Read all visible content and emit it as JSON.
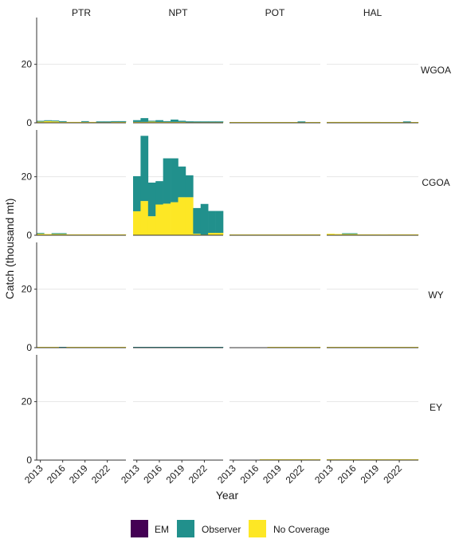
{
  "chart_data": {
    "type": "bar",
    "stacked": true,
    "faceted": true,
    "xlabel": "Year",
    "ylabel": "Catch (thousand mt)",
    "ylim": [
      0,
      36
    ],
    "yticks": [
      0,
      20
    ],
    "xticks": [
      2013,
      2016,
      2019,
      2022
    ],
    "x_range": [
      2012.5,
      2024.5
    ],
    "grid": true,
    "legend_position": "bottom",
    "columns": [
      "PTR",
      "NPT",
      "POT",
      "HAL"
    ],
    "rows": [
      "WGOA",
      "CGOA",
      "WY",
      "EY"
    ],
    "years": [
      2013,
      2014,
      2015,
      2016,
      2017,
      2018,
      2019,
      2020,
      2021,
      2022,
      2023,
      2024
    ],
    "series": [
      {
        "name": "EM",
        "color": "#440154"
      },
      {
        "name": "Observer",
        "color": "#21908C"
      },
      {
        "name": "No Coverage",
        "color": "#FDE725"
      }
    ],
    "panels": [
      {
        "row": "WGOA",
        "col": "PTR",
        "EM": [
          0,
          0,
          0,
          0,
          0,
          0,
          0,
          0,
          0,
          0,
          0,
          0
        ],
        "Observer": [
          0.1,
          0.1,
          0.1,
          0.1,
          0,
          0,
          0.1,
          0,
          0.2,
          0.1,
          0.1,
          0.1
        ],
        "No Coverage": [
          0.4,
          0.6,
          0.5,
          0.3,
          0.3,
          0.3,
          0.3,
          0.3,
          0.2,
          0.2,
          0.3,
          0.3
        ]
      },
      {
        "row": "WGOA",
        "col": "NPT",
        "EM": [
          0,
          0,
          0,
          0,
          0,
          0,
          0,
          0,
          0,
          0,
          0,
          0
        ],
        "Observer": [
          0.6,
          1.3,
          0.3,
          0.6,
          0.2,
          0.8,
          0.4,
          0.3,
          0.1,
          0.1,
          0.1,
          0.1
        ],
        "No Coverage": [
          0.3,
          0.3,
          0.4,
          0.3,
          0.3,
          0.3,
          0.3,
          0.2,
          0.2,
          0.2,
          0.2,
          0.2
        ]
      },
      {
        "row": "WGOA",
        "col": "POT",
        "EM": [
          0,
          0,
          0,
          0,
          0,
          0,
          0,
          0,
          0,
          0,
          0,
          0
        ],
        "Observer": [
          0,
          0,
          0,
          0,
          0,
          0,
          0,
          0,
          0,
          0.1,
          0,
          0
        ],
        "No Coverage": [
          0.1,
          0.1,
          0.1,
          0.1,
          0.1,
          0.1,
          0.1,
          0.2,
          0.2,
          0.2,
          0.2,
          0.2
        ]
      },
      {
        "row": "WGOA",
        "col": "HAL",
        "EM": [
          0,
          0,
          0,
          0,
          0,
          0,
          0,
          0,
          0,
          0,
          0,
          0
        ],
        "Observer": [
          0,
          0,
          0,
          0,
          0,
          0,
          0,
          0,
          0,
          0,
          0.2,
          0
        ],
        "No Coverage": [
          0.3,
          0.3,
          0.3,
          0.3,
          0.3,
          0.3,
          0.3,
          0.2,
          0.2,
          0.2,
          0.2,
          0.2
        ]
      },
      {
        "row": "CGOA",
        "col": "PTR",
        "EM": [
          0,
          0,
          0,
          0,
          0,
          0,
          0,
          0,
          0,
          0,
          0,
          0
        ],
        "Observer": [
          0.2,
          0,
          0.3,
          0.3,
          0,
          0,
          0,
          0,
          0,
          0,
          0,
          0
        ],
        "No Coverage": [
          0.5,
          0.4,
          0.4,
          0.4,
          0.3,
          0.3,
          0.3,
          0.3,
          0.3,
          0.3,
          0.3,
          0.3
        ]
      },
      {
        "row": "CGOA",
        "col": "NPT",
        "EM": [
          0,
          0,
          0,
          0,
          0,
          0,
          0,
          0,
          0,
          0,
          0,
          0
        ],
        "Observer": [
          12.0,
          22.3,
          11.5,
          8.0,
          15.5,
          15.0,
          10.5,
          7.5,
          8.8,
          10.5,
          7.5,
          7.5
        ],
        "No Coverage": [
          8.2,
          11.7,
          6.5,
          10.5,
          10.8,
          11.3,
          13.0,
          13.0,
          0.5,
          0.2,
          0.8,
          0.8
        ]
      },
      {
        "row": "CGOA",
        "col": "POT",
        "EM": [
          0,
          0,
          0,
          0,
          0,
          0,
          0,
          0,
          0,
          0,
          0,
          0
        ],
        "Observer": [
          0,
          0,
          0,
          0,
          0,
          0,
          0,
          0,
          0,
          0,
          0,
          0
        ],
        "No Coverage": [
          0.2,
          0.1,
          0.1,
          0.1,
          0.1,
          0.1,
          0.1,
          0.2,
          0.3,
          0.3,
          0.3,
          0.3
        ]
      },
      {
        "row": "CGOA",
        "col": "HAL",
        "EM": [
          0,
          0,
          0,
          0,
          0,
          0,
          0,
          0,
          0,
          0,
          0,
          0
        ],
        "Observer": [
          0,
          0,
          0.2,
          0.2,
          0,
          0,
          0,
          0,
          0,
          0,
          0,
          0
        ],
        "No Coverage": [
          0.5,
          0.4,
          0.4,
          0.4,
          0.3,
          0.3,
          0.3,
          0.2,
          0.3,
          0.3,
          0.3,
          0.3
        ]
      },
      {
        "row": "WY",
        "col": "PTR",
        "EM": [
          0,
          0,
          0,
          0,
          0,
          0,
          0,
          0,
          0,
          0,
          0,
          0
        ],
        "Observer": [
          0,
          0,
          0,
          0.2,
          0,
          0,
          0,
          0,
          0,
          0,
          0,
          0
        ],
        "No Coverage": [
          0.1,
          0.1,
          0.1,
          0,
          0.1,
          0.1,
          0.1,
          0.1,
          0.1,
          0.1,
          0.1,
          0.1
        ]
      },
      {
        "row": "WY",
        "col": "NPT",
        "EM": [
          0,
          0,
          0,
          0,
          0,
          0,
          0,
          0,
          0,
          0,
          0,
          0
        ],
        "Observer": [
          0.2,
          0.2,
          0.2,
          0.2,
          0.2,
          0.2,
          0.2,
          0.2,
          0.2,
          0.2,
          0.2,
          0.2
        ],
        "No Coverage": [
          0,
          0,
          0,
          0,
          0,
          0,
          0,
          0,
          0,
          0,
          0,
          0
        ]
      },
      {
        "row": "WY",
        "col": "POT",
        "EM": [
          0,
          0,
          0,
          0,
          0,
          0,
          0,
          0,
          0,
          0,
          0,
          0
        ],
        "Observer": [
          0,
          0,
          0,
          0,
          0,
          0,
          0,
          0,
          0,
          0,
          0,
          0
        ],
        "No Coverage": [
          0,
          0,
          0,
          0,
          0,
          0.2,
          0.2,
          0.2,
          0.2,
          0.2,
          0.2,
          0.2
        ]
      },
      {
        "row": "WY",
        "col": "HAL",
        "EM": [
          0,
          0,
          0,
          0,
          0,
          0,
          0,
          0,
          0,
          0,
          0,
          0
        ],
        "Observer": [
          0,
          0,
          0,
          0,
          0,
          0,
          0,
          0,
          0,
          0,
          0,
          0
        ],
        "No Coverage": [
          0.2,
          0.2,
          0.2,
          0.2,
          0.2,
          0.2,
          0.2,
          0.2,
          0.2,
          0.2,
          0.2,
          0.2
        ]
      },
      {
        "row": "EY",
        "col": "PTR",
        "EM": [
          0,
          0,
          0,
          0,
          0,
          0,
          0,
          0,
          0,
          0,
          0,
          0
        ],
        "Observer": [
          0,
          0,
          0,
          0,
          0,
          0,
          0,
          0,
          0,
          0,
          0,
          0
        ],
        "No Coverage": [
          0,
          0,
          0,
          0,
          0,
          0,
          0,
          0,
          0,
          0,
          0,
          0
        ]
      },
      {
        "row": "EY",
        "col": "NPT",
        "EM": [
          0,
          0,
          0,
          0,
          0,
          0,
          0,
          0,
          0,
          0,
          0,
          0
        ],
        "Observer": [
          0,
          0,
          0,
          0,
          0,
          0,
          0,
          0,
          0,
          0,
          0,
          0
        ],
        "No Coverage": [
          0,
          0,
          0,
          0,
          0,
          0,
          0,
          0,
          0,
          0,
          0,
          0
        ]
      },
      {
        "row": "EY",
        "col": "POT",
        "EM": [
          0,
          0,
          0,
          0,
          0,
          0,
          0,
          0,
          0,
          0,
          0,
          0
        ],
        "Observer": [
          0,
          0,
          0,
          0,
          0,
          0,
          0,
          0,
          0,
          0,
          0,
          0
        ],
        "No Coverage": [
          0,
          0,
          0,
          0,
          0.3,
          0.3,
          0.3,
          0.3,
          0.3,
          0.3,
          0.3,
          0.3
        ]
      },
      {
        "row": "EY",
        "col": "HAL",
        "EM": [
          0,
          0,
          0,
          0,
          0,
          0,
          0,
          0,
          0,
          0,
          0,
          0
        ],
        "Observer": [
          0,
          0,
          0,
          0,
          0,
          0,
          0,
          0,
          0,
          0,
          0,
          0
        ],
        "No Coverage": [
          0.3,
          0.3,
          0.3,
          0.3,
          0.3,
          0.3,
          0.3,
          0.3,
          0.3,
          0.3,
          0.3,
          0.3
        ]
      }
    ]
  }
}
